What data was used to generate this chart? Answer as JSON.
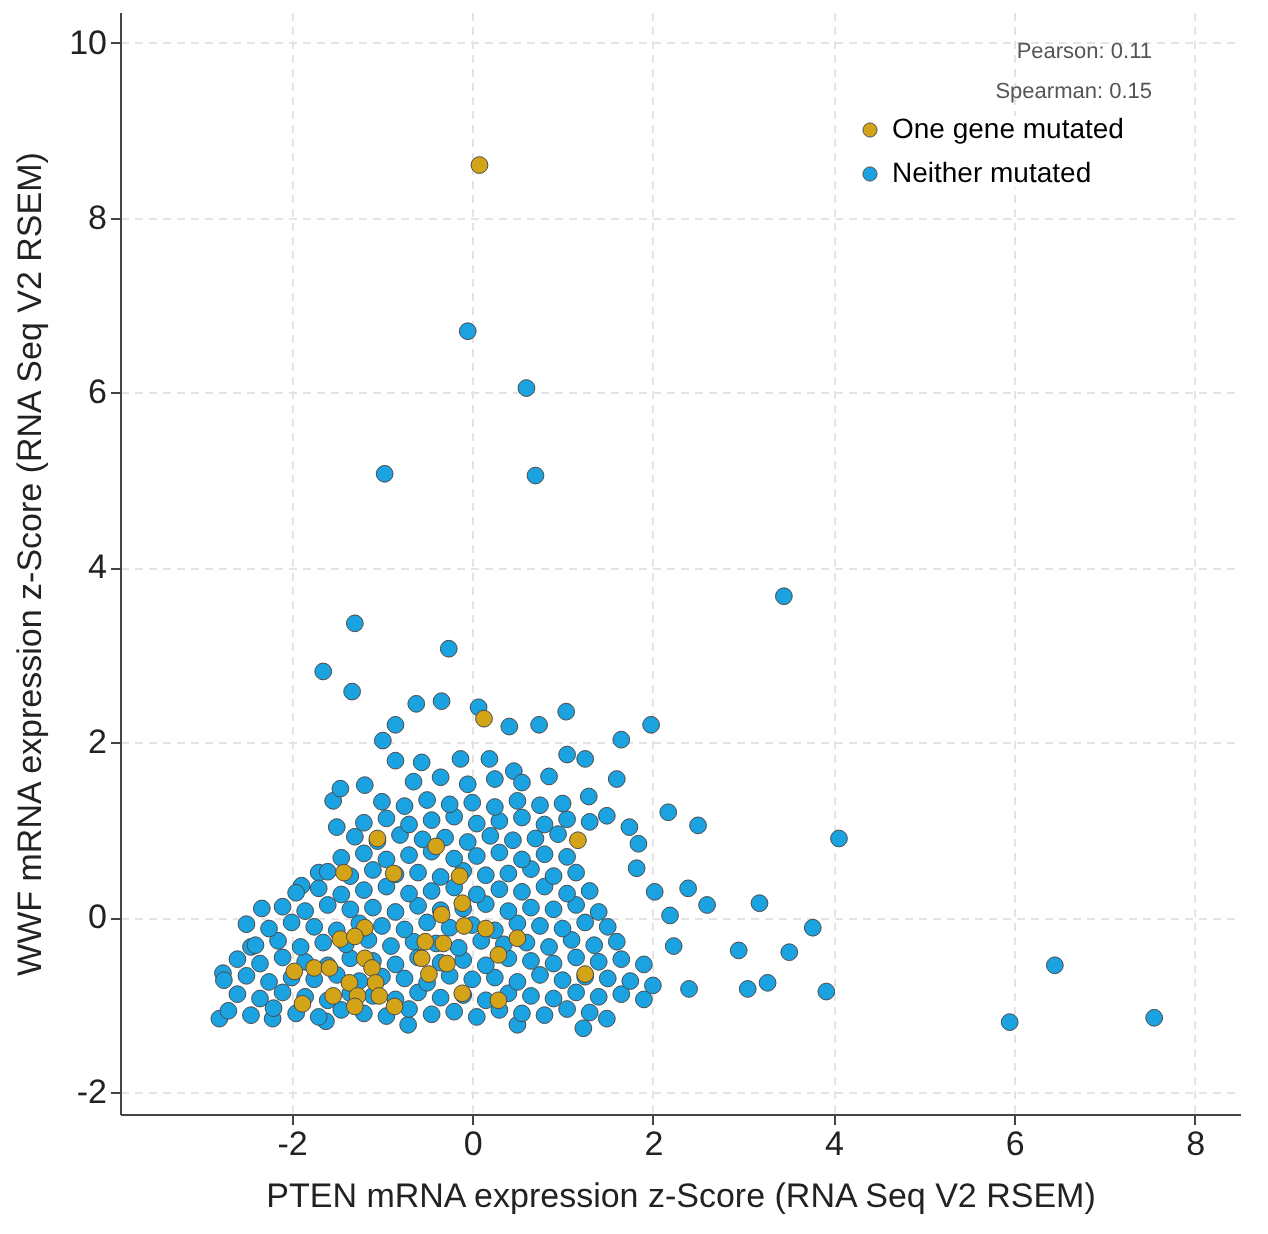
{
  "chart_data": {
    "type": "scatter",
    "xlabel": "PTEN mRNA expression z-Score (RNA Seq V2 RSEM)",
    "ylabel": "WWF mRNA expression z-Score (RNA Seq V2 RSEM)",
    "annotations": [
      "Pearson: 0.11",
      "Spearman: 0.15"
    ],
    "xlim": [
      -3.9,
      8.5
    ],
    "ylim": [
      -2.25,
      10.35
    ],
    "xticks": [
      -2,
      0,
      2,
      4,
      6,
      8
    ],
    "yticks": [
      -2,
      0,
      2,
      4,
      6,
      8,
      10
    ],
    "grid": true,
    "legend": "top right",
    "marker": "circle",
    "series": [
      {
        "name": "One gene mutated",
        "color": "#d4a418",
        "x": [
          0.08,
          0.13,
          -1.05,
          -0.4,
          1.17,
          -1.42,
          -0.87,
          -0.14,
          -0.11,
          -0.34,
          -1.19,
          -1.46,
          -1.3,
          -0.09,
          0.15,
          0.5,
          -0.52,
          -0.32,
          -0.56,
          -0.28,
          0.29,
          -0.48,
          -1.97,
          -1.75,
          -1.58,
          -1.19,
          -1.11,
          -1.07,
          -1.36,
          -1.54,
          -1.27,
          -1.03,
          -1.88,
          -1.3,
          -0.86,
          -0.11,
          0.29,
          1.25
        ],
        "values": [
          8.6,
          2.27,
          0.9,
          0.81,
          0.88,
          0.51,
          0.5,
          0.47,
          0.16,
          0.03,
          -0.12,
          -0.25,
          -0.22,
          -0.1,
          -0.13,
          -0.24,
          -0.28,
          -0.3,
          -0.47,
          -0.53,
          -0.43,
          -0.65,
          -0.62,
          -0.58,
          -0.58,
          -0.47,
          -0.58,
          -0.75,
          -0.75,
          -0.9,
          -0.9,
          -0.9,
          -0.99,
          -1.02,
          -1.02,
          -0.87,
          -0.95,
          -0.65
        ]
      },
      {
        "name": "Neither mutated",
        "color": "#1aa3e0",
        "x": [
          -0.05,
          0.6,
          -0.97,
          0.7,
          3.45,
          4.06,
          3.77,
          3.92,
          3.51,
          3.18,
          2.95,
          3.27,
          3.05,
          2.6,
          2.39,
          2.4,
          2.5,
          2.17,
          1.98,
          1.65,
          1.6,
          1.74,
          1.84,
          1.82,
          2.02,
          2.19,
          2.23,
          2.0,
          1.49,
          5.95,
          6.45,
          7.55,
          -1.3,
          -0.26,
          -1.65,
          -1.33,
          -2.33,
          -2.76,
          -2.8,
          -2.45,
          -2.21,
          -1.62,
          -0.71,
          0.5,
          1.23,
          -1.89,
          -1.7,
          -1.5,
          -1.54,
          -1.46,
          -1.19,
          -0.99,
          -0.85,
          -0.85,
          -0.62,
          -0.34,
          0.07,
          0.41,
          0.74,
          1.04,
          -0.13,
          0.19,
          1.05,
          1.25,
          -0.56,
          0.46,
          1.29,
          1.49,
          -2.7,
          -2.45,
          -2.2,
          -1.95,
          -1.7,
          -1.45,
          -1.2,
          -0.95,
          -0.7,
          -0.45,
          -0.2,
          0.05,
          0.3,
          0.55,
          0.8,
          1.05,
          1.3,
          -2.6,
          -2.35,
          -2.1,
          -1.85,
          -1.6,
          -1.35,
          -1.1,
          -0.85,
          -0.6,
          -0.35,
          -0.1,
          0.15,
          0.4,
          0.65,
          0.9,
          1.15,
          1.4,
          1.65,
          1.9,
          -2.75,
          -2.5,
          -2.25,
          -2.0,
          -1.75,
          -1.5,
          -1.25,
          -1.0,
          -0.75,
          -0.5,
          -0.25,
          0.0,
          0.25,
          0.5,
          0.75,
          1.0,
          1.25,
          1.5,
          1.75,
          -2.6,
          -2.35,
          -2.1,
          -1.85,
          -1.6,
          -1.35,
          -1.1,
          -0.85,
          -0.6,
          -0.35,
          -0.1,
          0.15,
          0.4,
          0.65,
          0.9,
          1.15,
          1.4,
          1.65,
          1.9,
          -2.4,
          -2.15,
          -1.9,
          -1.65,
          -1.4,
          -1.15,
          -0.9,
          -0.65,
          -0.4,
          -0.15,
          0.1,
          0.35,
          0.6,
          0.85,
          1.1,
          1.35,
          1.6,
          -2.5,
          -2.25,
          -2.0,
          -1.75,
          -1.5,
          -1.25,
          -1.0,
          -0.75,
          -0.5,
          -0.25,
          0.0,
          0.25,
          0.5,
          0.75,
          1.0,
          1.25,
          1.5,
          -2.1,
          -1.85,
          -1.6,
          -1.35,
          -1.1,
          -0.85,
          -0.6,
          -0.35,
          -0.1,
          0.15,
          0.4,
          0.65,
          0.9,
          1.15,
          1.4,
          -1.95,
          -1.7,
          -1.45,
          -1.2,
          -0.95,
          -0.7,
          -0.45,
          -0.2,
          0.05,
          0.3,
          0.55,
          0.8,
          1.05,
          1.3,
          -1.6,
          -1.35,
          -1.1,
          -0.85,
          -0.6,
          -0.35,
          -0.1,
          0.15,
          0.4,
          0.65,
          0.9,
          1.15,
          -1.45,
          -1.2,
          -0.95,
          -0.7,
          -0.45,
          -0.2,
          0.05,
          0.3,
          0.55,
          0.8,
          1.05,
          -1.3,
          -1.05,
          -0.8,
          -0.55,
          -0.3,
          -0.05,
          0.2,
          0.45,
          0.7,
          0.95,
          -1.2,
          -0.95,
          -0.7,
          -0.45,
          -0.2,
          0.05,
          0.3,
          0.55,
          0.8,
          1.05,
          1.3,
          -1.0,
          -0.75,
          -0.5,
          -0.25,
          0.0,
          0.25,
          0.5,
          0.75,
          1.0,
          -0.65,
          -0.35,
          -0.05,
          0.25,
          0.55,
          0.85
        ],
        "values": [
          6.7,
          6.05,
          5.07,
          5.05,
          3.67,
          0.9,
          -0.12,
          -0.85,
          -0.4,
          0.16,
          -0.38,
          -0.75,
          -0.82,
          0.14,
          0.33,
          -0.82,
          1.05,
          1.2,
          2.2,
          2.03,
          1.58,
          1.03,
          0.84,
          0.56,
          0.29,
          0.02,
          -0.33,
          -0.78,
          -1.16,
          -1.2,
          -0.55,
          -1.15,
          3.36,
          3.07,
          2.81,
          2.58,
          0.1,
          -0.64,
          -1.16,
          -0.34,
          -1.16,
          -1.19,
          -1.23,
          -1.23,
          -1.27,
          0.36,
          0.51,
          1.03,
          1.33,
          1.47,
          1.51,
          2.02,
          2.2,
          1.79,
          2.44,
          2.47,
          2.4,
          2.18,
          2.2,
          2.35,
          1.81,
          1.81,
          1.86,
          1.81,
          1.77,
          1.67,
          1.38,
          1.16,
          -1.07,
          -1.12,
          -1.04,
          -1.1,
          -1.14,
          -1.06,
          -1.1,
          -1.13,
          -1.05,
          -1.11,
          -1.08,
          -1.14,
          -1.06,
          -1.1,
          -1.12,
          -1.05,
          -1.09,
          -0.88,
          -0.93,
          -0.86,
          -0.91,
          -0.95,
          -0.87,
          -0.9,
          -0.94,
          -0.86,
          -0.92,
          -0.89,
          -0.95,
          -0.87,
          -0.9,
          -0.93,
          -0.86,
          -0.91,
          -0.88,
          -0.94,
          -0.72,
          -0.67,
          -0.74,
          -0.69,
          -0.71,
          -0.66,
          -0.73,
          -0.68,
          -0.7,
          -0.75,
          -0.67,
          -0.71,
          -0.69,
          -0.74,
          -0.66,
          -0.72,
          -0.68,
          -0.7,
          -0.73,
          -0.48,
          -0.53,
          -0.46,
          -0.51,
          -0.55,
          -0.47,
          -0.5,
          -0.54,
          -0.46,
          -0.52,
          -0.49,
          -0.55,
          -0.47,
          -0.5,
          -0.53,
          -0.46,
          -0.51,
          -0.48,
          -0.54,
          -0.32,
          -0.27,
          -0.34,
          -0.29,
          -0.31,
          -0.26,
          -0.33,
          -0.28,
          -0.3,
          -0.35,
          -0.27,
          -0.31,
          -0.29,
          -0.34,
          -0.26,
          -0.32,
          -0.28,
          -0.08,
          -0.13,
          -0.06,
          -0.11,
          -0.15,
          -0.07,
          -0.1,
          -0.14,
          -0.06,
          -0.12,
          -0.09,
          -0.15,
          -0.07,
          -0.1,
          -0.13,
          -0.06,
          -0.11,
          0.12,
          0.07,
          0.14,
          0.09,
          0.11,
          0.06,
          0.13,
          0.08,
          0.1,
          0.15,
          0.07,
          0.11,
          0.09,
          0.14,
          0.06,
          0.28,
          0.33,
          0.26,
          0.31,
          0.35,
          0.27,
          0.3,
          0.34,
          0.26,
          0.32,
          0.29,
          0.35,
          0.27,
          0.3,
          0.52,
          0.47,
          0.54,
          0.49,
          0.51,
          0.46,
          0.53,
          0.48,
          0.5,
          0.55,
          0.47,
          0.51,
          0.68,
          0.73,
          0.66,
          0.71,
          0.75,
          0.67,
          0.7,
          0.74,
          0.66,
          0.72,
          0.69,
          0.92,
          0.87,
          0.94,
          0.89,
          0.91,
          0.86,
          0.93,
          0.88,
          0.9,
          0.95,
          1.08,
          1.13,
          1.06,
          1.11,
          1.15,
          1.07,
          1.1,
          1.14,
          1.06,
          1.12,
          1.09,
          1.32,
          1.27,
          1.34,
          1.29,
          1.31,
          1.26,
          1.33,
          1.28,
          1.3,
          1.55,
          1.6,
          1.52,
          1.58,
          1.54,
          1.61
        ]
      }
    ]
  }
}
